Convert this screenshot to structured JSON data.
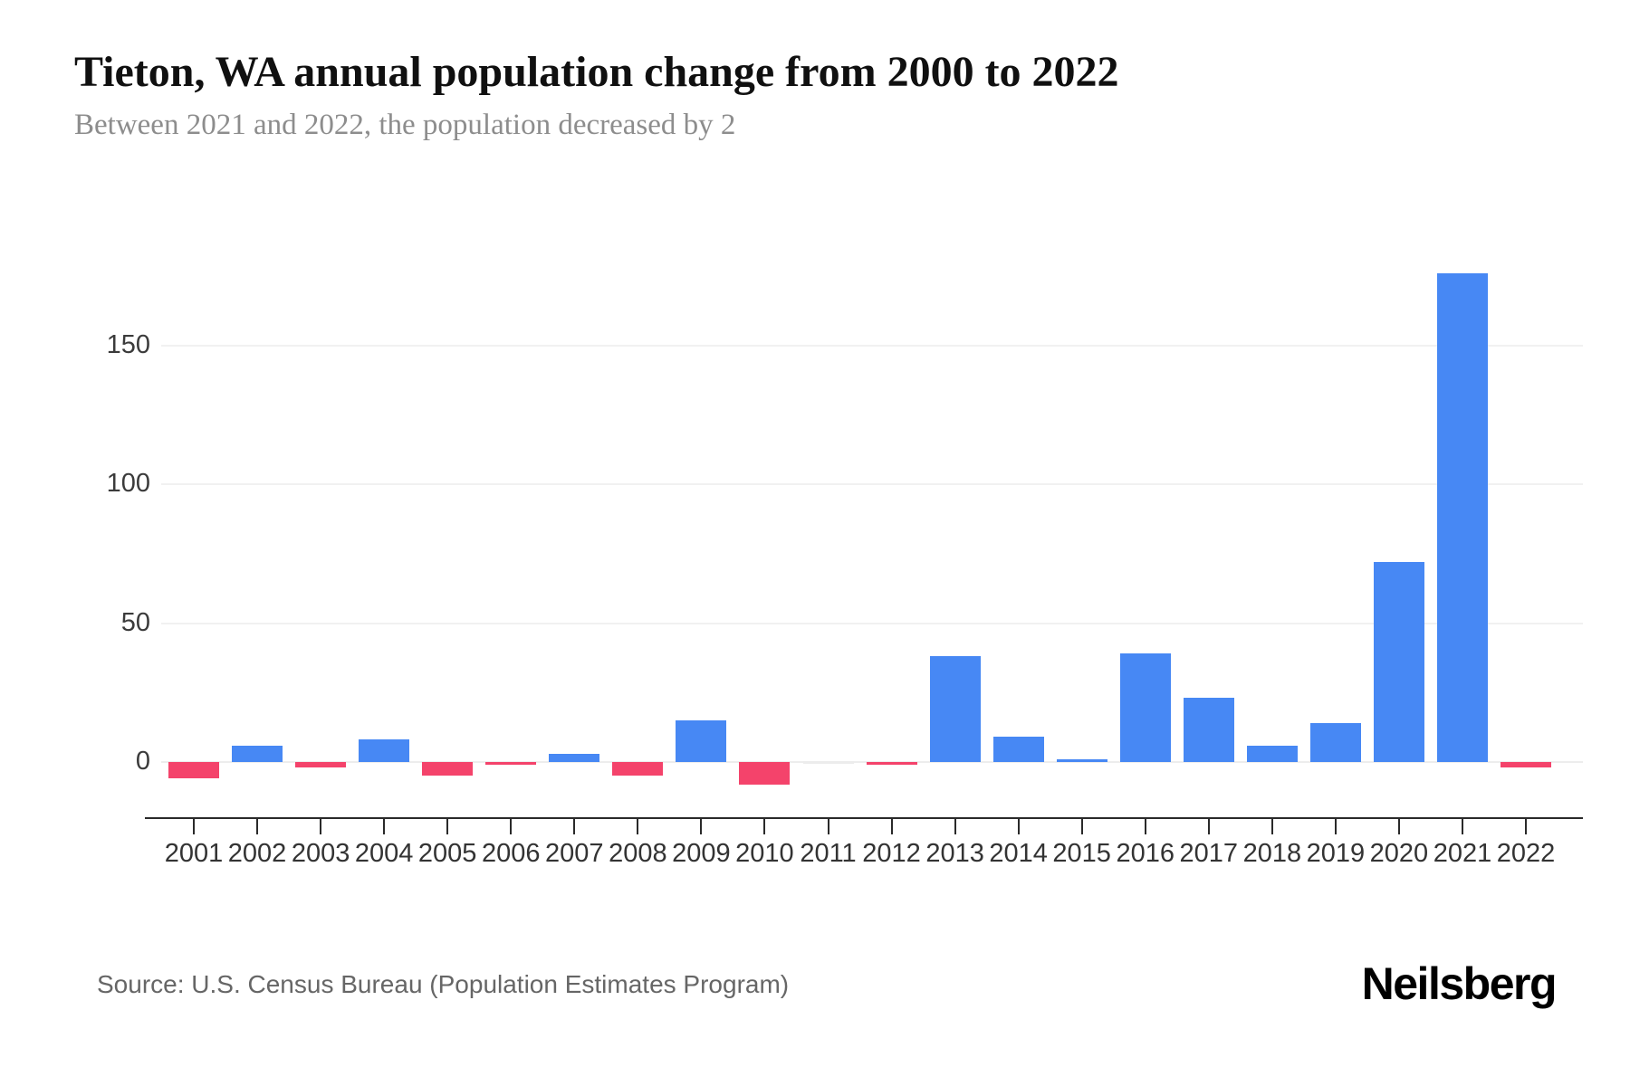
{
  "header": {
    "title": "Tieton, WA annual population change from 2000 to 2022",
    "subtitle": "Between 2021 and 2022, the population decreased by 2"
  },
  "footer": {
    "source": "Source: U.S. Census Bureau (Population Estimates Program)",
    "brand": "Neilsberg"
  },
  "chart_data": {
    "type": "bar",
    "title": "Tieton, WA annual population change from 2000 to 2022",
    "subtitle": "Between 2021 and 2022, the population decreased by 2",
    "categories": [
      "2001",
      "2002",
      "2003",
      "2004",
      "2005",
      "2006",
      "2007",
      "2008",
      "2009",
      "2010",
      "2011",
      "2012",
      "2013",
      "2014",
      "2015",
      "2016",
      "2017",
      "2018",
      "2019",
      "2020",
      "2021",
      "2022"
    ],
    "values": [
      -6,
      6,
      -2,
      8,
      -5,
      -1,
      3,
      -5,
      15,
      -8,
      0,
      -1,
      38,
      9,
      1,
      39,
      23,
      6,
      14,
      72,
      176,
      -2
    ],
    "xlabel": "",
    "ylabel": "",
    "yticks": [
      0,
      50,
      100,
      150
    ],
    "ylim": [
      -20,
      196
    ],
    "grid": "horizontal",
    "legend": "none",
    "colors": {
      "positive": "#4788f4",
      "negative": "#f4436b",
      "zero_bar": "#ececec",
      "gridline": "#f1f1f1",
      "axis": "#2a2a2a",
      "tick_label": "#333333"
    }
  }
}
